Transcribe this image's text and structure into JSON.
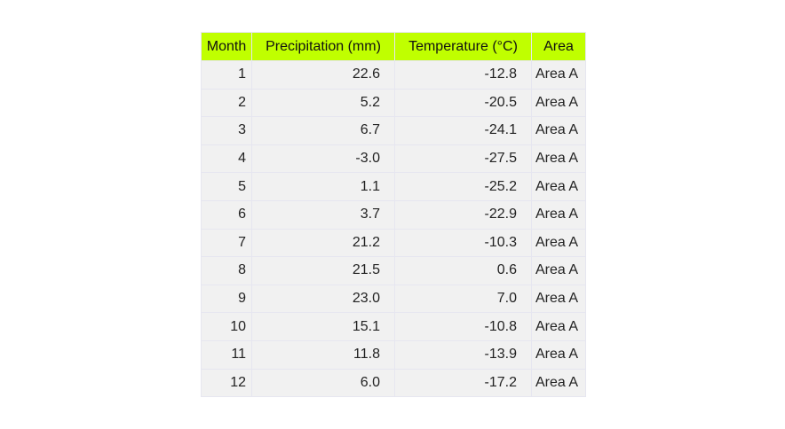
{
  "chart_data": {
    "type": "table",
    "header_color": "#c0ff00",
    "cell_color": "#f1f1f1",
    "grid_color": "#e6e6f0",
    "columns": [
      "Month",
      "Precipitation (mm)",
      "Temperature (°C)",
      "Area"
    ],
    "rows": [
      [
        "1",
        "22.6",
        "-12.8",
        "Area A"
      ],
      [
        "2",
        "5.2",
        "-20.5",
        "Area A"
      ],
      [
        "3",
        "6.7",
        "-24.1",
        "Area A"
      ],
      [
        "4",
        "-3.0",
        "-27.5",
        "Area A"
      ],
      [
        "5",
        "1.1",
        "-25.2",
        "Area A"
      ],
      [
        "6",
        "3.7",
        "-22.9",
        "Area A"
      ],
      [
        "7",
        "21.2",
        "-10.3",
        "Area A"
      ],
      [
        "8",
        "21.5",
        "0.6",
        "Area A"
      ],
      [
        "9",
        "23.0",
        "7.0",
        "Area A"
      ],
      [
        "10",
        "15.1",
        "-10.8",
        "Area A"
      ],
      [
        "11",
        "11.8",
        "-13.9",
        "Area A"
      ],
      [
        "12",
        "6.0",
        "-17.2",
        "Area A"
      ]
    ]
  }
}
